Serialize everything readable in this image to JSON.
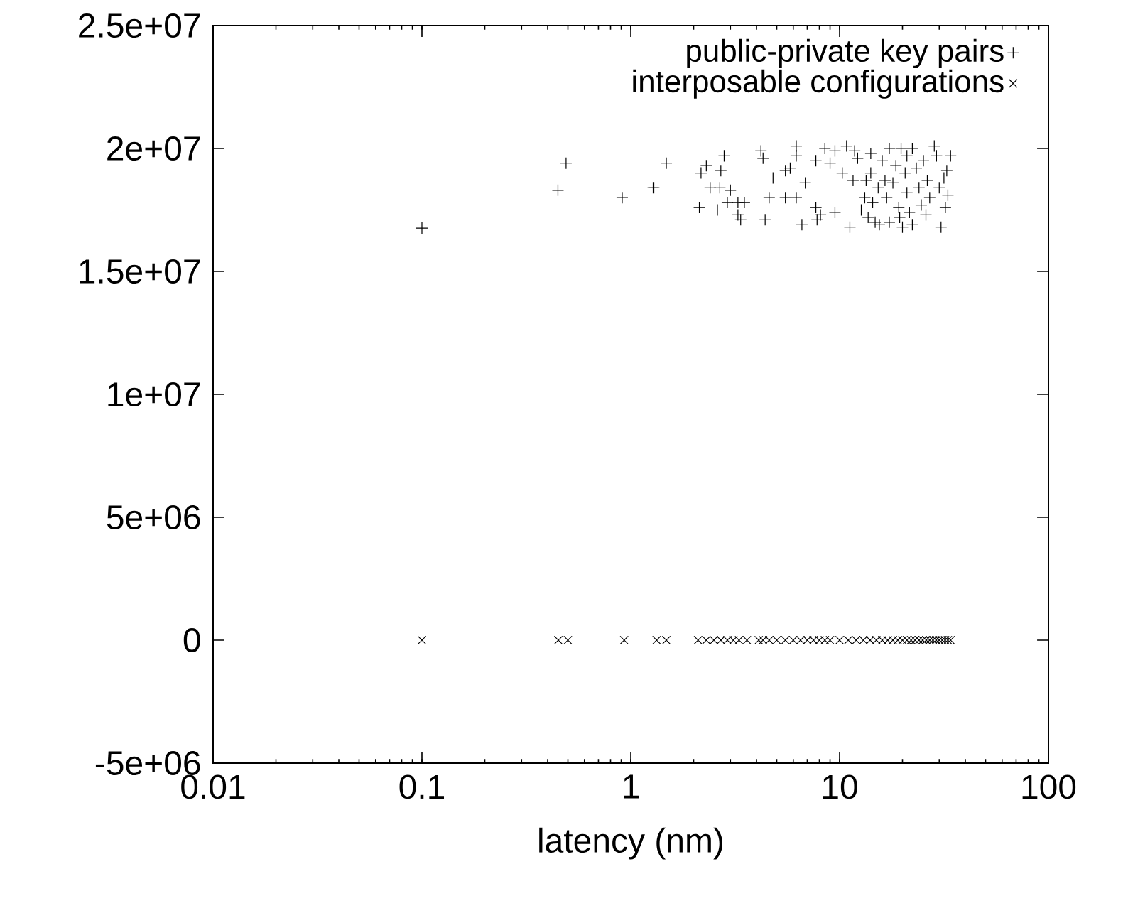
{
  "chart_data": {
    "type": "scatter",
    "xlabel": "latency (nm)",
    "log": "x",
    "legend": "top right",
    "grid": false,
    "xlim": [
      0.01,
      100
    ],
    "xticks": [
      0.01,
      0.1,
      1,
      10,
      100
    ],
    "ylim": [
      -5000000,
      25000000
    ],
    "yticks": [
      {
        "value": -5000000,
        "label": "-5e+06"
      },
      0,
      {
        "value": 5000000,
        "label": "5e+06"
      },
      {
        "value": 10000000,
        "label": "1e+07"
      },
      {
        "value": 15000000,
        "label": "1.5e+07"
      },
      {
        "value": 20000000,
        "label": "2e+07"
      },
      {
        "value": 25000000,
        "label": "2.5e+07"
      }
    ],
    "series": [
      {
        "name": "public-private key pairs",
        "color": "#000000",
        "marker": "plus",
        "x": [
          0.1,
          0.448,
          0.49,
          0.91,
          1.28,
          1.48,
          1.29,
          2.8,
          2.3,
          2.17,
          2.7,
          2.4,
          2.67,
          3.0,
          2.13,
          2.6,
          2.9,
          3.26,
          3.5,
          3.26,
          3.36,
          4.2,
          4.3,
          4.4,
          4.6,
          4.8,
          5.5,
          5.8,
          6.2,
          6.2,
          5.5,
          6.2,
          6.85,
          6.6,
          7.7,
          7.7,
          7.8,
          8.1,
          8.5,
          9.0,
          9.5,
          9.5,
          10.3,
          10.8,
          11.2,
          11.6,
          11.8,
          12.2,
          12.7,
          13.2,
          13.4,
          13.7,
          14.1,
          14.1,
          14.4,
          14.8,
          15.3,
          15.5,
          16.0,
          16.5,
          16.8,
          17.3,
          17.3,
          18.0,
          18.6,
          19.2,
          19.4,
          19.7,
          20.0,
          20.6,
          21.0,
          21.0,
          21.6,
          22.3,
          22.3,
          23.3,
          24.0,
          24.6,
          25.2,
          25.9,
          26.3,
          27.0,
          28.4,
          29.1,
          30.0,
          30.6,
          31.6,
          32.1,
          32.6,
          33.0,
          34.0
        ],
        "values": [
          16760000,
          18300000,
          19400000,
          18000000,
          18400000,
          19400000,
          18400000,
          19700000,
          19300000,
          19000000,
          19100000,
          18400000,
          18400000,
          18300000,
          17600000,
          17500000,
          17800000,
          17800000,
          17800000,
          17300000,
          17100000,
          19900000,
          19600000,
          17100000,
          18000000,
          18800000,
          19100000,
          19200000,
          20100000,
          19700000,
          18000000,
          18000000,
          18600000,
          16900000,
          19500000,
          17600000,
          17100000,
          17300000,
          20000000,
          19400000,
          19900000,
          17400000,
          19000000,
          20100000,
          16800000,
          18700000,
          19900000,
          19600000,
          17500000,
          18000000,
          18700000,
          17200000,
          19800000,
          19000000,
          17800000,
          17000000,
          18400000,
          16900000,
          19500000,
          18700000,
          18000000,
          20000000,
          17000000,
          18600000,
          19300000,
          17600000,
          17200000,
          20000000,
          16800000,
          19000000,
          18200000,
          19700000,
          17400000,
          20000000,
          16900000,
          19200000,
          18400000,
          17700000,
          19500000,
          17300000,
          18700000,
          18000000,
          20100000,
          19700000,
          18400000,
          16800000,
          18800000,
          17600000,
          19100000,
          18100000,
          19700000
        ]
      },
      {
        "name": "interposable configurations",
        "color": "#000000",
        "marker": "cross",
        "x": [
          0.1,
          0.45,
          0.5,
          0.93,
          1.33,
          1.48,
          2.1,
          2.3,
          2.5,
          2.7,
          2.9,
          3.1,
          3.3,
          3.6,
          4.1,
          4.3,
          4.6,
          5.0,
          5.5,
          6.0,
          6.5,
          7.0,
          7.5,
          8.0,
          8.5,
          9.0,
          10,
          11,
          12,
          13,
          14,
          15,
          16,
          17,
          18,
          19,
          20,
          21,
          22,
          23,
          24,
          25,
          26,
          27,
          28,
          29,
          30,
          31,
          32,
          33,
          34
        ],
        "values": [
          0,
          0,
          0,
          0,
          0,
          0,
          0,
          0,
          0,
          0,
          0,
          0,
          0,
          0,
          0,
          0,
          0,
          0,
          0,
          0,
          0,
          0,
          0,
          0,
          0,
          0,
          0,
          0,
          0,
          0,
          0,
          0,
          0,
          0,
          0,
          0,
          0,
          0,
          0,
          0,
          0,
          0,
          0,
          0,
          0,
          0,
          0,
          0,
          0,
          0,
          0
        ]
      }
    ]
  }
}
